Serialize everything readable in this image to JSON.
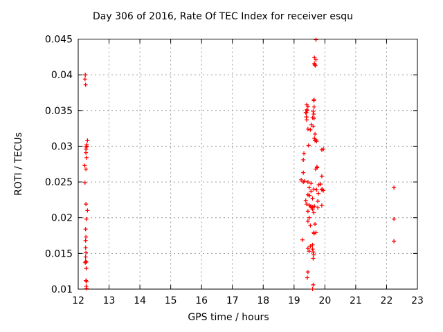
{
  "chart_data": {
    "type": "scatter",
    "title": "Day 306 of 2016, Rate Of TEC Index for receiver esqu",
    "xlabel": "GPS time / hours",
    "ylabel": "ROTI / TECUs",
    "xlim": [
      12,
      23
    ],
    "ylim": [
      0.01,
      0.045
    ],
    "x_ticks": [
      12,
      13,
      14,
      15,
      16,
      17,
      18,
      19,
      20,
      21,
      22,
      23
    ],
    "x_tick_labels": [
      "12",
      "13",
      "14",
      "15",
      "16",
      "17",
      "18",
      "19",
      "20",
      "21",
      "22",
      "23"
    ],
    "y_ticks": [
      0.01,
      0.015,
      0.02,
      0.025,
      0.03,
      0.035,
      0.04,
      0.045
    ],
    "y_tick_labels": [
      "0.01",
      "0.015",
      "0.02",
      "0.025",
      "0.03",
      "0.035",
      "0.04",
      "0.045"
    ],
    "grid": true,
    "legend_position": "none",
    "marker": {
      "shape": "plus",
      "size": 7
    },
    "colors": {
      "marker": "#ff0000",
      "grid": "#999999",
      "axis": "#000000",
      "text": "#000000",
      "background": "#ffffff"
    },
    "series": [
      {
        "name": "ROTI",
        "points": [
          [
            12.23,
            0.04
          ],
          [
            12.22,
            0.0394
          ],
          [
            12.24,
            0.0386
          ],
          [
            12.3,
            0.0308
          ],
          [
            12.27,
            0.0302
          ],
          [
            12.28,
            0.03
          ],
          [
            12.26,
            0.0299
          ],
          [
            12.25,
            0.0296
          ],
          [
            12.25,
            0.0291
          ],
          [
            12.27,
            0.0284
          ],
          [
            12.21,
            0.0273
          ],
          [
            12.25,
            0.0268
          ],
          [
            12.22,
            0.0249
          ],
          [
            12.25,
            0.0219
          ],
          [
            12.3,
            0.021
          ],
          [
            12.26,
            0.0198
          ],
          [
            12.24,
            0.0184
          ],
          [
            12.25,
            0.0173
          ],
          [
            12.24,
            0.0168
          ],
          [
            12.24,
            0.0158
          ],
          [
            12.25,
            0.0151
          ],
          [
            12.24,
            0.0145
          ],
          [
            12.24,
            0.0139
          ],
          [
            12.26,
            0.0138
          ],
          [
            12.23,
            0.0137
          ],
          [
            12.26,
            0.0129
          ],
          [
            12.25,
            0.0112
          ],
          [
            12.27,
            0.0111
          ],
          [
            12.26,
            0.0104
          ],
          [
            12.27,
            0.0101
          ],
          [
            19.71,
            0.0449
          ],
          [
            19.66,
            0.0424
          ],
          [
            19.71,
            0.0421
          ],
          [
            19.66,
            0.0416
          ],
          [
            19.67,
            0.0414
          ],
          [
            19.69,
            0.0413
          ],
          [
            19.65,
            0.0365
          ],
          [
            19.64,
            0.0364
          ],
          [
            19.41,
            0.0358
          ],
          [
            19.45,
            0.0356
          ],
          [
            19.65,
            0.0355
          ],
          [
            19.41,
            0.0351
          ],
          [
            19.43,
            0.035
          ],
          [
            19.62,
            0.0349
          ],
          [
            19.38,
            0.0347
          ],
          [
            19.4,
            0.0347
          ],
          [
            19.64,
            0.0345
          ],
          [
            19.4,
            0.0341
          ],
          [
            19.6,
            0.034
          ],
          [
            19.65,
            0.0339
          ],
          [
            19.41,
            0.0337
          ],
          [
            19.56,
            0.033
          ],
          [
            19.62,
            0.0328
          ],
          [
            19.45,
            0.0324
          ],
          [
            19.53,
            0.0323
          ],
          [
            19.68,
            0.0317
          ],
          [
            19.66,
            0.0311
          ],
          [
            19.71,
            0.0309
          ],
          [
            19.68,
            0.0308
          ],
          [
            19.73,
            0.0307
          ],
          [
            19.47,
            0.0301
          ],
          [
            19.95,
            0.0296
          ],
          [
            19.9,
            0.0295
          ],
          [
            19.32,
            0.029
          ],
          [
            19.3,
            0.0281
          ],
          [
            19.74,
            0.0271
          ],
          [
            19.75,
            0.027
          ],
          [
            19.7,
            0.0268
          ],
          [
            19.3,
            0.0263
          ],
          [
            19.9,
            0.0258
          ],
          [
            19.23,
            0.0253
          ],
          [
            19.34,
            0.0251
          ],
          [
            19.3,
            0.025
          ],
          [
            19.45,
            0.025
          ],
          [
            19.55,
            0.0248
          ],
          [
            19.86,
            0.0247
          ],
          [
            19.8,
            0.0246
          ],
          [
            19.49,
            0.0242
          ],
          [
            19.64,
            0.024
          ],
          [
            19.91,
            0.024
          ],
          [
            19.73,
            0.0239
          ],
          [
            19.9,
            0.0239
          ],
          [
            19.95,
            0.0238
          ],
          [
            19.55,
            0.0237
          ],
          [
            19.79,
            0.0234
          ],
          [
            19.45,
            0.0232
          ],
          [
            19.5,
            0.0231
          ],
          [
            19.6,
            0.0227
          ],
          [
            19.38,
            0.0224
          ],
          [
            19.77,
            0.0223
          ],
          [
            19.41,
            0.0219
          ],
          [
            19.5,
            0.0217
          ],
          [
            19.9,
            0.0217
          ],
          [
            19.54,
            0.0216
          ],
          [
            19.66,
            0.0216
          ],
          [
            19.6,
            0.0215
          ],
          [
            19.57,
            0.0214
          ],
          [
            19.77,
            0.0214
          ],
          [
            19.6,
            0.0212
          ],
          [
            19.45,
            0.0209
          ],
          [
            19.64,
            0.0207
          ],
          [
            19.49,
            0.02
          ],
          [
            19.45,
            0.0195
          ],
          [
            19.68,
            0.0191
          ],
          [
            19.53,
            0.0189
          ],
          [
            19.64,
            0.0179
          ],
          [
            19.71,
            0.0179
          ],
          [
            19.65,
            0.0178
          ],
          [
            19.27,
            0.0169
          ],
          [
            19.6,
            0.0162
          ],
          [
            19.53,
            0.016
          ],
          [
            19.45,
            0.0157
          ],
          [
            19.6,
            0.0156
          ],
          [
            19.49,
            0.0153
          ],
          [
            19.62,
            0.0152
          ],
          [
            19.64,
            0.0148
          ],
          [
            19.62,
            0.0143
          ],
          [
            19.45,
            0.0124
          ],
          [
            19.43,
            0.0116
          ],
          [
            19.62,
            0.0106
          ],
          [
            19.6,
            0.01
          ],
          [
            22.24,
            0.0242
          ],
          [
            22.24,
            0.0198
          ],
          [
            22.24,
            0.0167
          ]
        ]
      }
    ]
  }
}
